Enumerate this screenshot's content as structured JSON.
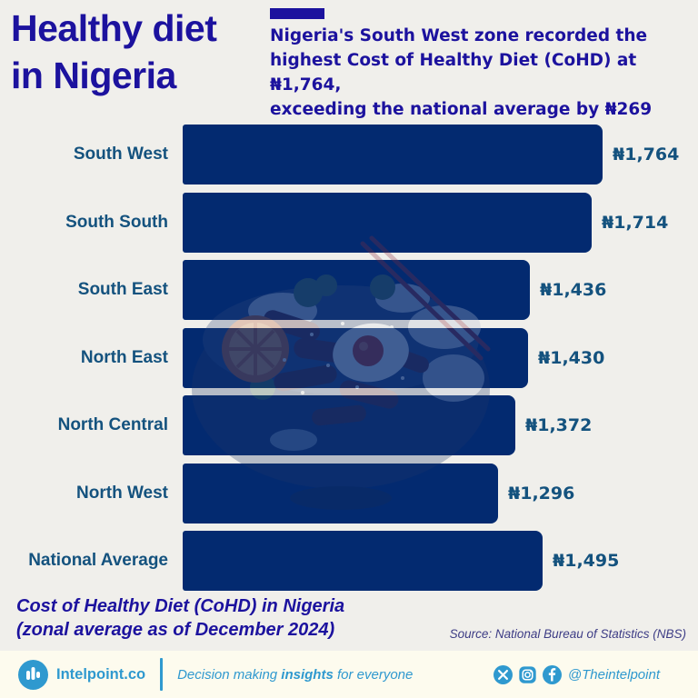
{
  "header": {
    "title_line1": "Healthy diet",
    "title_line2": "in Nigeria",
    "subtitle_lines": [
      "Nigeria's South West zone recorded the",
      "highest Cost of Healthy Diet (CoHD) at ₦1,764,",
      "exceeding the national average by ₦269"
    ]
  },
  "chart_data": {
    "type": "bar",
    "orientation": "horizontal",
    "title": "Cost of Healthy Diet (CoHD) in Nigeria (zonal average as of December 2024)",
    "currency": "NGN",
    "categories": [
      "South West",
      "South South",
      "South East",
      "North East",
      "North Central",
      "North West",
      "National Average"
    ],
    "values": [
      1764,
      1714,
      1436,
      1430,
      1372,
      1296,
      1495
    ],
    "value_labels": [
      "₦1,764",
      "₦1,714",
      "₦1,436",
      "₦1,430",
      "₦1,372",
      "₦1,296",
      "₦1,495"
    ],
    "xlim": [
      0,
      1900
    ],
    "grid": false,
    "legend": false,
    "bar_color": "#032a70",
    "label_color": "#14527e"
  },
  "caption": {
    "line1": "Cost of Healthy Diet (CoHD) in Nigeria",
    "line2": "(zonal average as of December 2024)"
  },
  "source": "Source: National Bureau of Statistics (NBS)",
  "footer": {
    "brand": "Intelpoint.co",
    "tagline_prefix": "Decision making ",
    "tagline_bold": "insights",
    "tagline_suffix": " for everyone",
    "handle": "@Theintelpoint",
    "icons": [
      "x-icon",
      "instagram-icon",
      "facebook-icon"
    ]
  },
  "colors": {
    "background": "#f0efeb",
    "footer_background": "#fdfbee",
    "accent_indigo": "#1c129e",
    "bar_navy": "#032a70",
    "label_steel_blue": "#14527e",
    "footer_blue": "#2f99cf",
    "source_text": "#3d3c85"
  }
}
